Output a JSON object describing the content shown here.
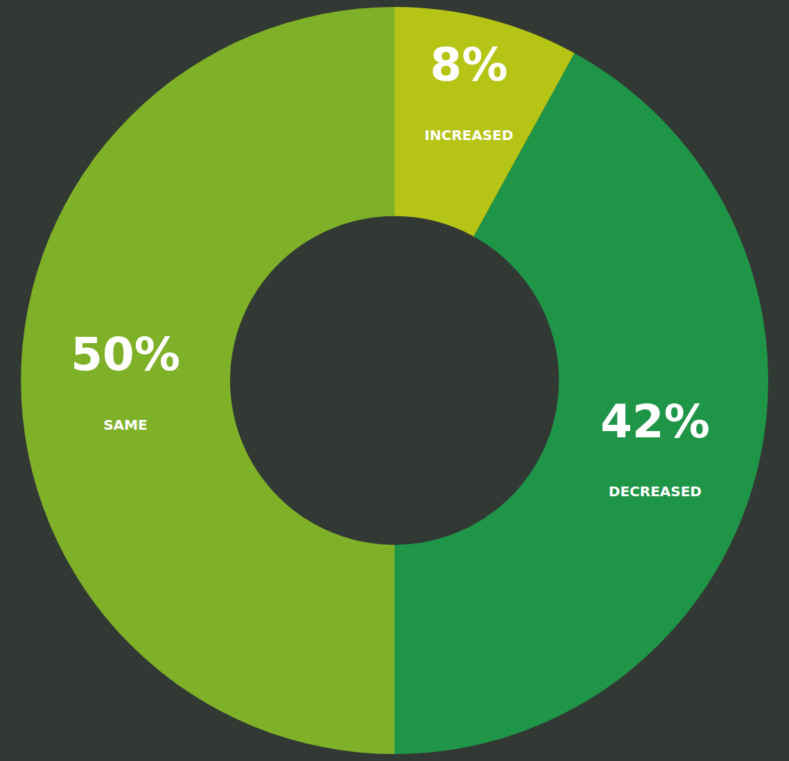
{
  "chart_data": {
    "type": "pie",
    "categories": [
      "INCREASED",
      "DECREASED",
      "SAME"
    ],
    "values": [
      8,
      42,
      50
    ],
    "value_labels": [
      "8%",
      "42%",
      "50%"
    ],
    "colors": [
      "#b6c415",
      "#1f9548",
      "#7fb128"
    ],
    "data_labels": true
  }
}
